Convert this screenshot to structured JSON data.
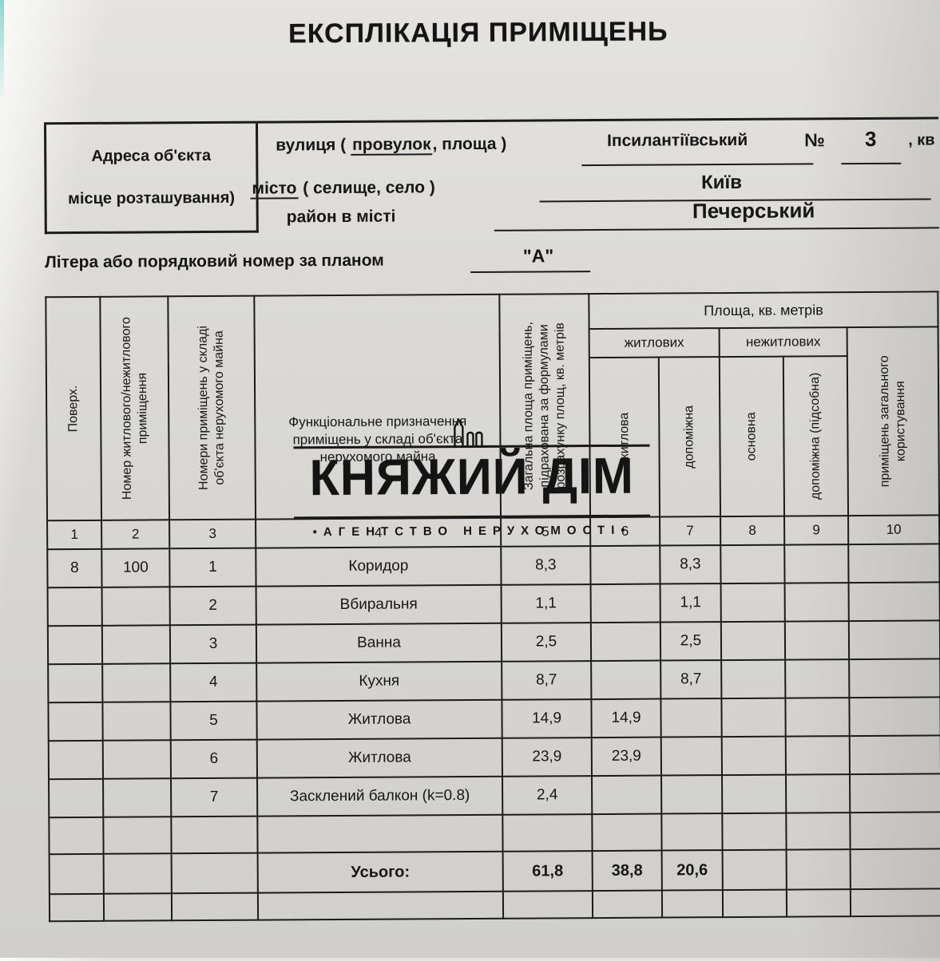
{
  "title": "ЕКСПЛІКАЦІЯ ПРИМІЩЕНЬ",
  "address": {
    "box_label_line1": "Адреса об'єкта",
    "box_label_line2": "місце розташування)",
    "street": {
      "label_pre": "вулиця (",
      "label_underlined": "провулок",
      "label_post": ", площа )",
      "value": "Іпсилантіївський"
    },
    "building_no": {
      "label": "№",
      "value": "3",
      "suffix": ", кв"
    },
    "city": {
      "label_underlined": "місто",
      "label_post": "( селище, село )",
      "value": "Київ"
    },
    "district": {
      "label": "район в місті",
      "value": "Печерський"
    }
  },
  "plan_letter": {
    "label": "Літера або порядковий номер за планом",
    "value": "\"А\""
  },
  "watermark": {
    "brand": "КНЯЖИЙ ДІМ",
    "tagline": "•АГЕНТСТВО НЕРУХОМОСТІ•",
    "icon_name": "building-icon"
  },
  "table": {
    "headers": {
      "col1": "Поверх.",
      "col2": "Номер житлового/нежитлового приміщення",
      "col3": "Номери приміщень у складі об'єкта нерухомого майна",
      "col4": "Функціональне призначення приміщень у складі об'єкта нерухомого майна",
      "col5": "Загальна площа приміщень, підрахована за формулами розрахунку площ, кв. метрів",
      "area_group": "Площа, кв. метрів",
      "residential_group": "житлових",
      "nonresidential_group": "нежитлових",
      "col6": "житлова",
      "col7": "допоміжна",
      "col8": "основна",
      "col9": "допоміжна (підсобна)",
      "col10": "приміщень загального користування"
    },
    "column_numbers": [
      "1",
      "2",
      "3",
      "4",
      "5",
      "6",
      "7",
      "8",
      "9",
      "10"
    ],
    "rows": [
      {
        "bold": false,
        "cells": [
          "8",
          "100",
          "1",
          "Коридор",
          "8,3",
          "",
          "8,3",
          "",
          "",
          ""
        ]
      },
      {
        "bold": false,
        "cells": [
          "",
          "",
          "2",
          "Вбиральня",
          "1,1",
          "",
          "1,1",
          "",
          "",
          ""
        ]
      },
      {
        "bold": false,
        "cells": [
          "",
          "",
          "3",
          "Ванна",
          "2,5",
          "",
          "2,5",
          "",
          "",
          ""
        ]
      },
      {
        "bold": false,
        "cells": [
          "",
          "",
          "4",
          "Кухня",
          "8,7",
          "",
          "8,7",
          "",
          "",
          ""
        ]
      },
      {
        "bold": false,
        "cells": [
          "",
          "",
          "5",
          "Житлова",
          "14,9",
          "14,9",
          "",
          "",
          "",
          ""
        ]
      },
      {
        "bold": false,
        "cells": [
          "",
          "",
          "6",
          "Житлова",
          "23,9",
          "23,9",
          "",
          "",
          "",
          ""
        ]
      },
      {
        "bold": false,
        "cells": [
          "",
          "",
          "7",
          "Засклений балкон (k=0.8)",
          "2,4",
          "",
          "",
          "",
          "",
          ""
        ]
      },
      {
        "bold": false,
        "cells": [
          "",
          "",
          "",
          "",
          "",
          "",
          "",
          "",
          "",
          ""
        ]
      },
      {
        "bold": true,
        "cells": [
          "",
          "",
          "",
          "Усього:",
          "61,8",
          "38,8",
          "20,6",
          "",
          "",
          ""
        ]
      },
      {
        "bold": false,
        "cells": [
          "",
          "",
          "",
          "",
          "",
          "",
          "",
          "",
          "",
          ""
        ]
      }
    ]
  }
}
